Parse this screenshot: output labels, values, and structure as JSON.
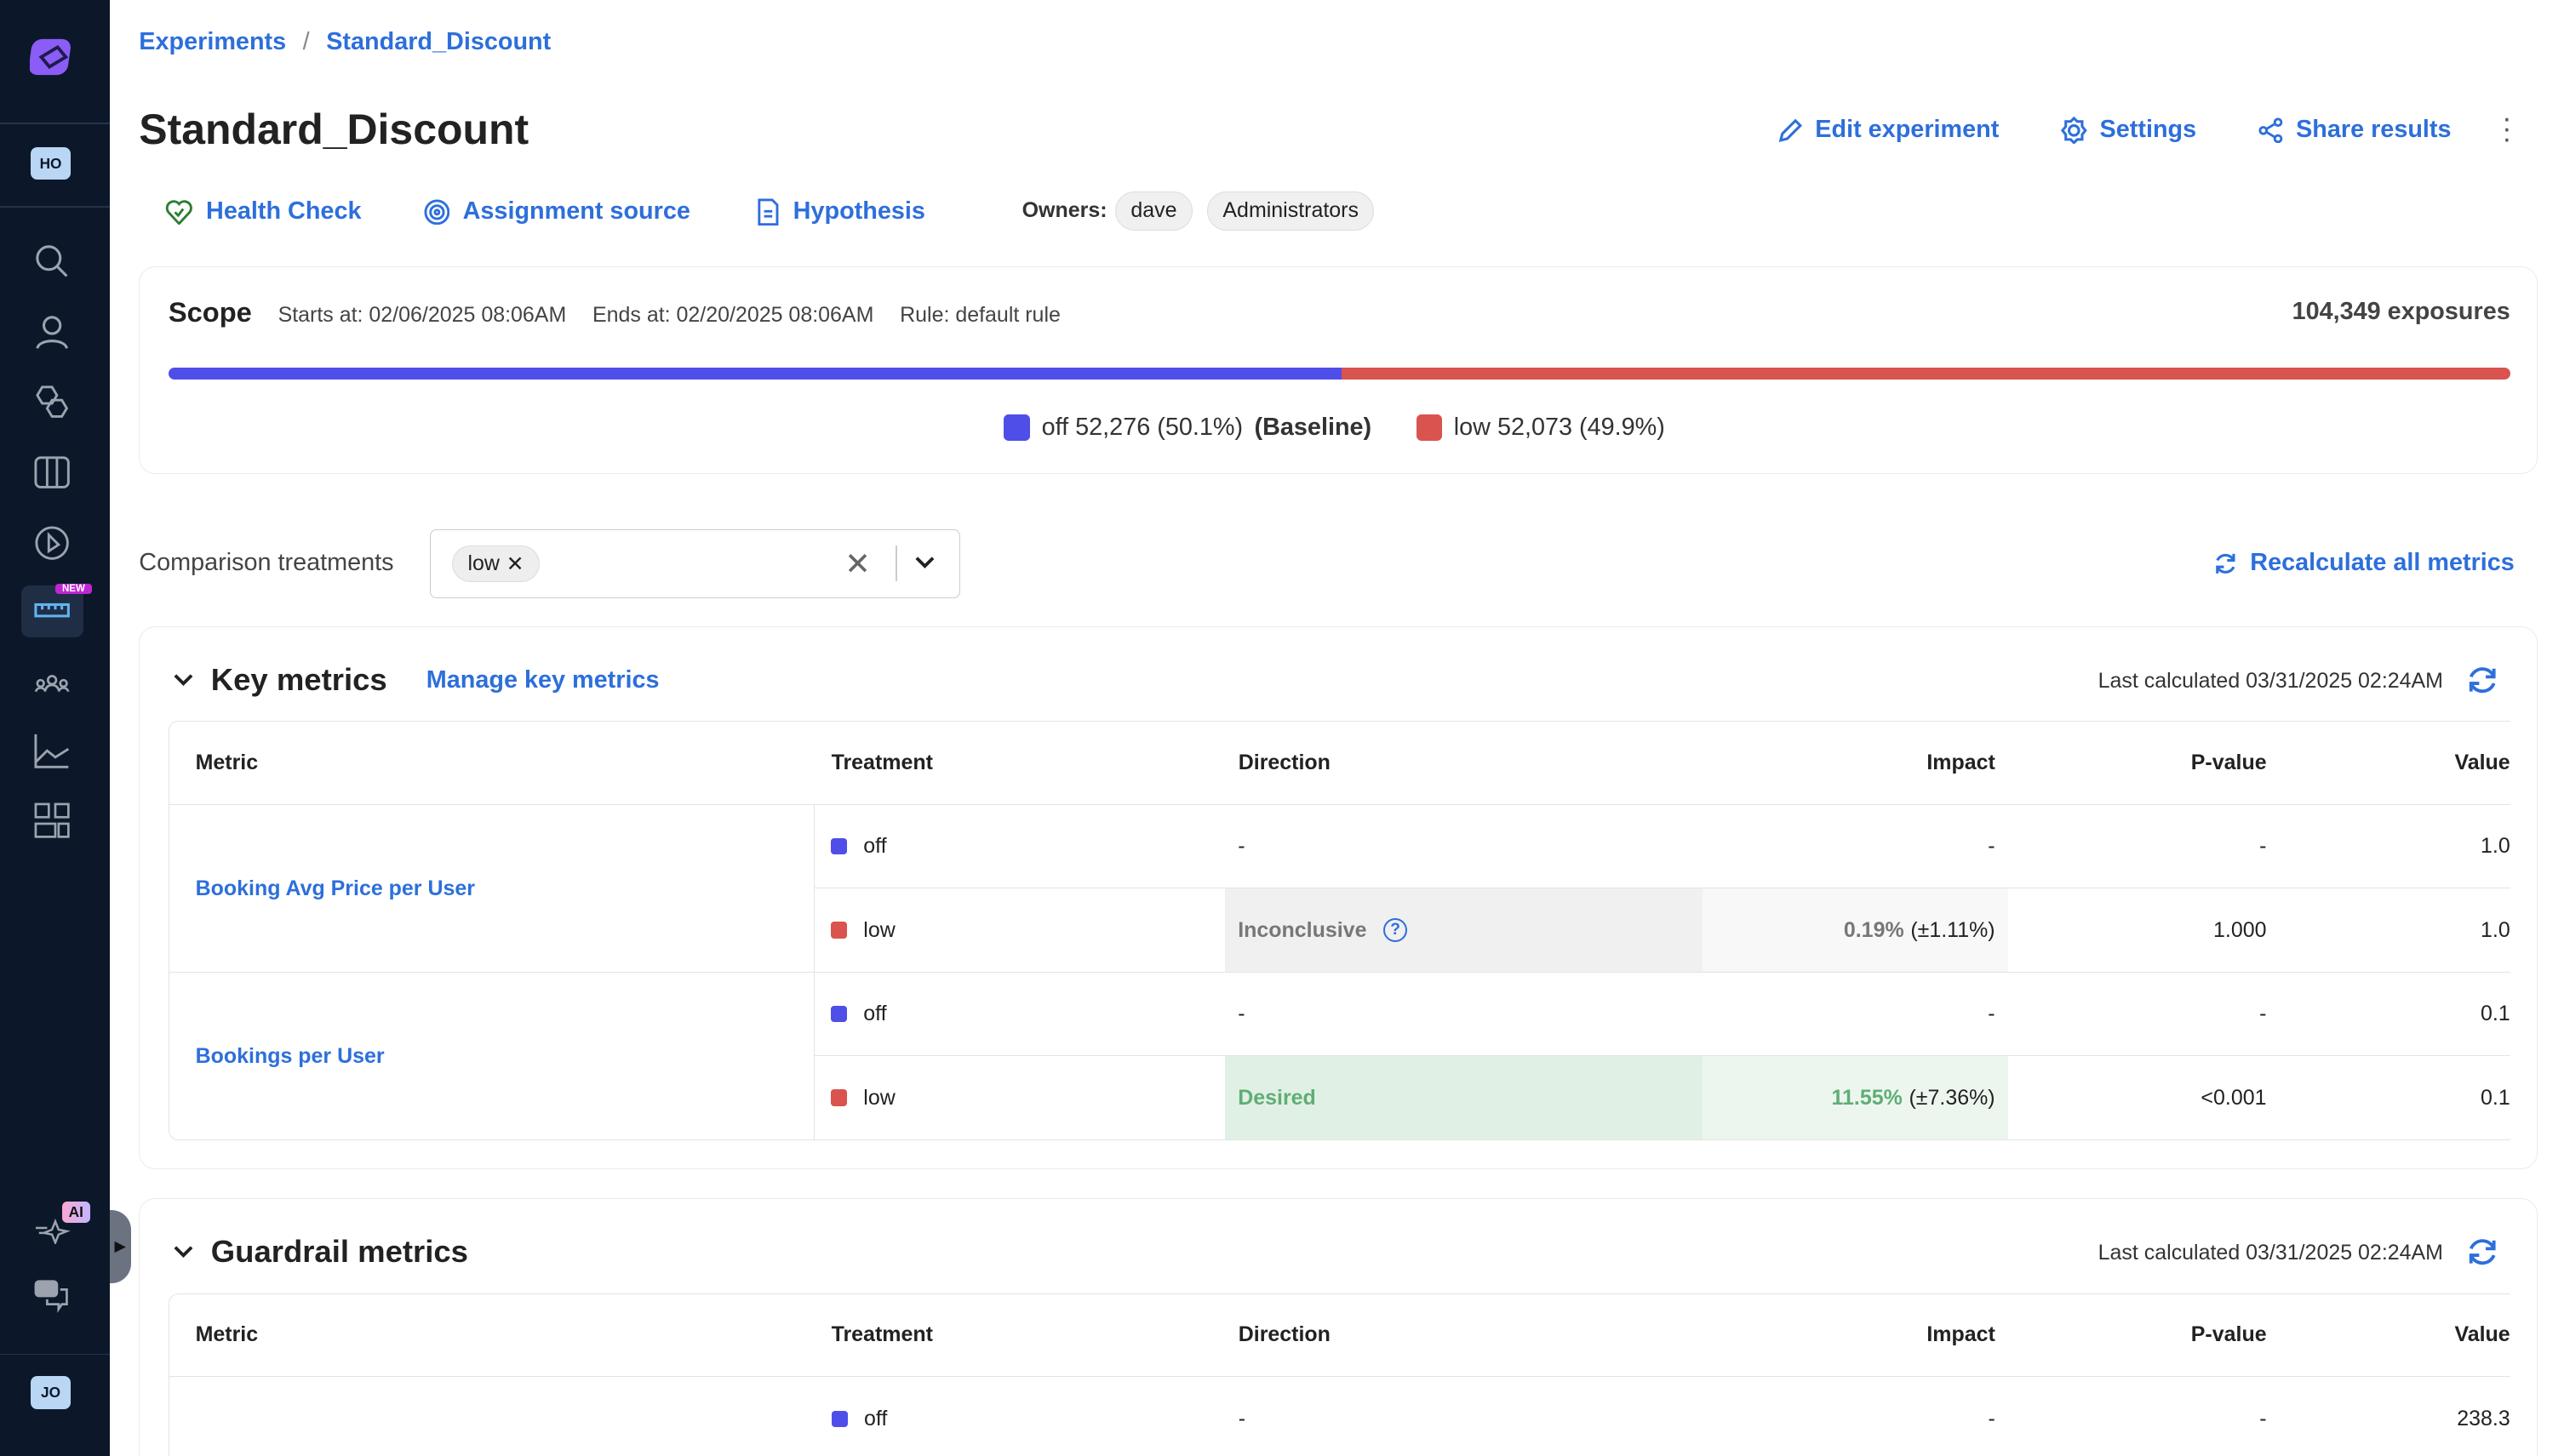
{
  "sidebar": {
    "workspace_avatar": "HO",
    "user_avatar": "JO",
    "new_badge": "NEW",
    "ai_badge": "AI",
    "icons": [
      "search-icon",
      "user-icon",
      "hexagons-icon",
      "columns-icon",
      "play-circle-icon",
      "ruler-icon",
      "users-group-icon",
      "line-chart-icon",
      "dashboard-icon"
    ],
    "active_icon": "ruler-icon"
  },
  "breadcrumb": [
    "Experiments",
    "Standard_Discount"
  ],
  "header": {
    "title": "Standard_Discount",
    "edit": "Edit experiment",
    "settings": "Settings",
    "share": "Share results"
  },
  "tabs": {
    "health": "Health Check",
    "assignment": "Assignment source",
    "hypothesis": "Hypothesis",
    "owners_label": "Owners:",
    "owners": [
      "dave",
      "Administrators"
    ]
  },
  "scope": {
    "title": "Scope",
    "starts": "Starts at: 02/06/2025 08:06AM",
    "ends": "Ends at: 02/20/2025 08:06AM",
    "rule": "Rule: default rule",
    "exposures": "104,349 exposures",
    "off_fraction": 0.501,
    "off_label": "off 52,276 (50.1%)",
    "baseline": "(Baseline)",
    "low_label": "low 52,073 (49.9%)",
    "colors": {
      "off": "#4f4ee8",
      "low": "#d9534f"
    }
  },
  "comparison": {
    "label": "Comparison treatments",
    "selected": "low",
    "recalc": "Recalculate all metrics"
  },
  "key_metrics": {
    "title": "Key metrics",
    "manage": "Manage key metrics",
    "last_calc": "Last calculated 03/31/2025 02:24AM",
    "headers": [
      "Metric",
      "Treatment",
      "Direction",
      "Impact",
      "P-value",
      "Value"
    ],
    "metrics": [
      {
        "name": "Booking Avg Price per User",
        "rows": [
          {
            "treatment": "off",
            "direction": "-",
            "impact": "-",
            "ci": "",
            "pvalue": "-",
            "value": "1.0"
          },
          {
            "treatment": "low",
            "direction": "Inconclusive",
            "impact": "0.19%",
            "ci": "(±1.11%)",
            "pvalue": "1.000",
            "value": "1.0"
          }
        ]
      },
      {
        "name": "Bookings per User",
        "rows": [
          {
            "treatment": "off",
            "direction": "-",
            "impact": "-",
            "ci": "",
            "pvalue": "-",
            "value": "0.1"
          },
          {
            "treatment": "low",
            "direction": "Desired",
            "impact": "11.55%",
            "ci": "(±7.36%)",
            "pvalue": "<0.001",
            "value": "0.1"
          }
        ]
      }
    ]
  },
  "guardrail": {
    "title": "Guardrail metrics",
    "last_calc": "Last calculated 03/31/2025 02:24AM",
    "headers": [
      "Metric",
      "Treatment",
      "Direction",
      "Impact",
      "P-value",
      "Value"
    ],
    "rows": [
      {
        "treatment": "off",
        "direction": "-",
        "impact": "-",
        "pvalue": "-",
        "value": "238.3"
      }
    ]
  }
}
